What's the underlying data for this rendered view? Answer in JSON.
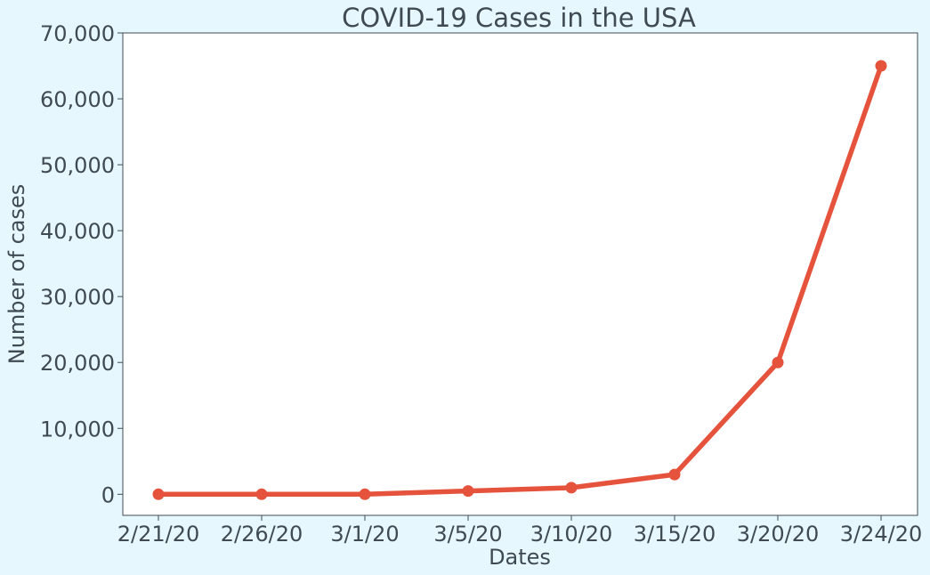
{
  "chart_data": {
    "type": "line",
    "title": "COVID-19 Cases in the USA",
    "xlabel": "Dates",
    "ylabel": "Number of cases",
    "categories": [
      "2/21/20",
      "2/26/20",
      "3/1/20",
      "3/5/20",
      "3/10/20",
      "3/15/20",
      "3/20/20",
      "3/24/20"
    ],
    "series": [
      {
        "values": [
          0,
          0,
          0,
          500,
          1000,
          3000,
          20000,
          65000
        ]
      }
    ],
    "y_ticks": [
      0,
      10000,
      20000,
      30000,
      40000,
      50000,
      60000,
      70000
    ],
    "y_tick_labels": [
      "0",
      "10,000",
      "20,000",
      "30,000",
      "40,000",
      "50,000",
      "60,000",
      "70,000"
    ],
    "ylim": [
      -3200,
      70000
    ],
    "grid": false,
    "colors": {
      "line": "#e5533d",
      "background": "#e6f8fd",
      "plot_background": "#ffffff",
      "text": "#404a52"
    }
  }
}
